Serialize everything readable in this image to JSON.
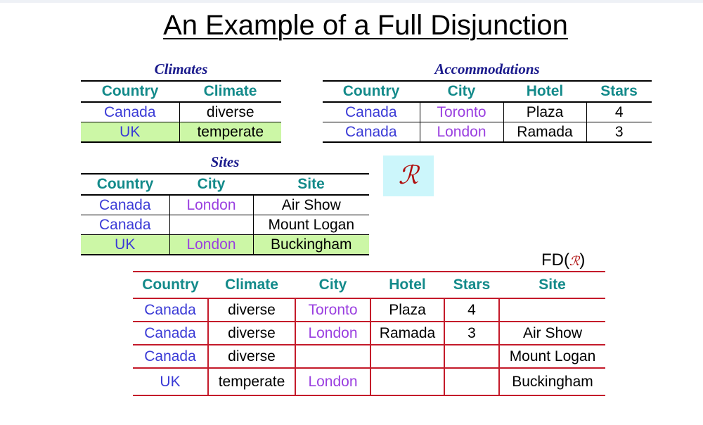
{
  "title": "An Example of a Full Disjunction",
  "r_symbol": "ℛ",
  "fd": {
    "prefix": "FD(",
    "symbol": "ℛ",
    "suffix": ")"
  },
  "climates": {
    "caption": "Climates",
    "headers": [
      "Country",
      "Climate"
    ],
    "rows": [
      {
        "country": "Canada",
        "climate": "diverse",
        "highlighted": false
      },
      {
        "country": "UK",
        "climate": "temperate",
        "highlighted": true
      }
    ]
  },
  "accommodations": {
    "caption": "Accommodations",
    "headers": [
      "Country",
      "City",
      "Hotel",
      "Stars"
    ],
    "rows": [
      {
        "country": "Canada",
        "city": "Toronto",
        "hotel": "Plaza",
        "stars": "4"
      },
      {
        "country": "Canada",
        "city": "London",
        "hotel": "Ramada",
        "stars": "3"
      }
    ]
  },
  "sites": {
    "caption": "Sites",
    "headers": [
      "Country",
      "City",
      "Site"
    ],
    "rows": [
      {
        "country": "Canada",
        "city": "London",
        "site": "Air Show",
        "highlighted": false
      },
      {
        "country": "Canada",
        "city": "",
        "site": "Mount Logan",
        "highlighted": false
      },
      {
        "country": "UK",
        "city": "London",
        "site": "Buckingham",
        "highlighted": true
      }
    ]
  },
  "full_disjunction": {
    "headers": [
      "Country",
      "Climate",
      "City",
      "Hotel",
      "Stars",
      "Site"
    ],
    "rows": [
      {
        "country": "Canada",
        "climate": "diverse",
        "city": "Toronto",
        "hotel": "Plaza",
        "stars": "4",
        "site": ""
      },
      {
        "country": "Canada",
        "climate": "diverse",
        "city": "London",
        "hotel": "Ramada",
        "stars": "3",
        "site": "Air Show"
      },
      {
        "country": "Canada",
        "climate": "diverse",
        "city": "",
        "hotel": "",
        "stars": "",
        "site": "Mount Logan"
      },
      {
        "country": "UK",
        "climate": "temperate",
        "city": "London",
        "hotel": "",
        "stars": "",
        "site": "Buckingham"
      }
    ]
  },
  "colors": {
    "header_teal": "#138a8a",
    "country_blue": "#3a3ad6",
    "city_purple": "#9a3fe0",
    "highlight_green": "#ccf7a6",
    "fd_rule_red": "#c41a2a",
    "r_box_cyan": "#ccf6fb"
  }
}
